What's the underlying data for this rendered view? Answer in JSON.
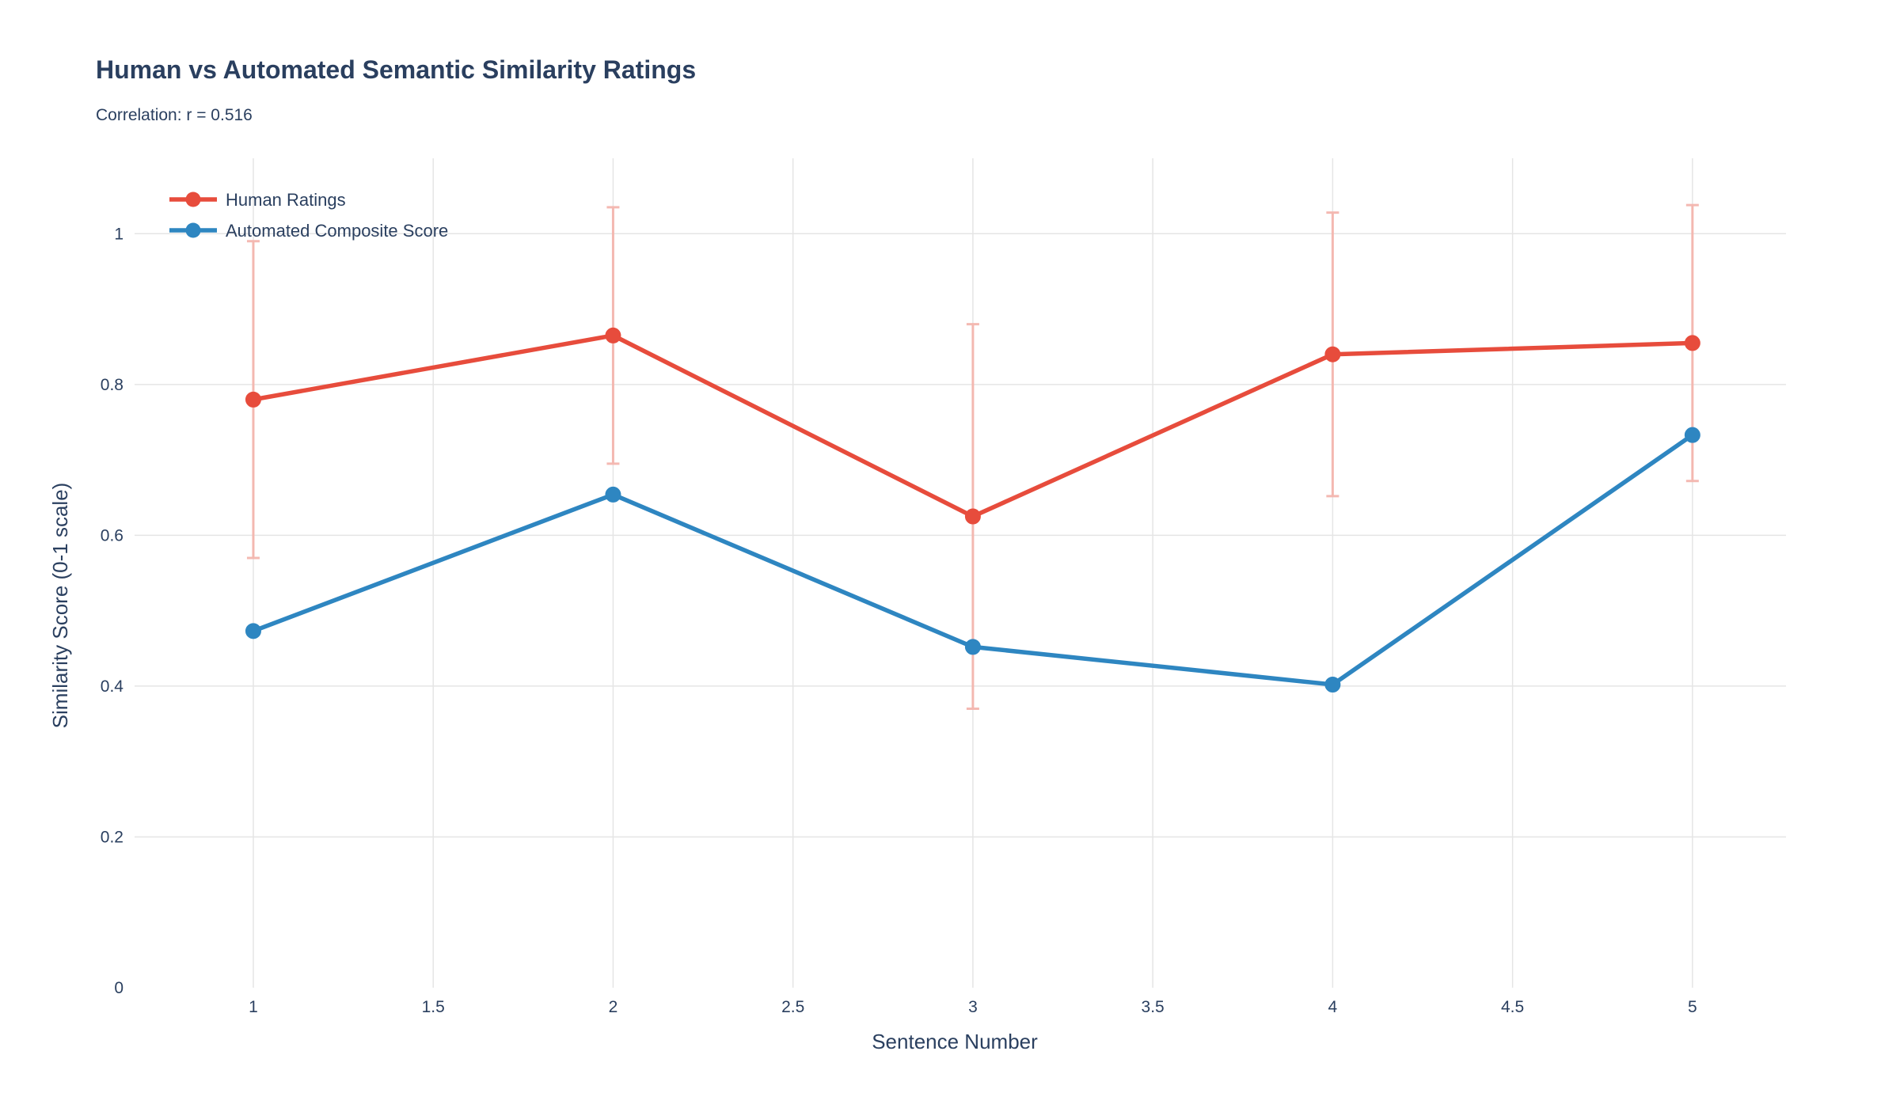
{
  "chart_data": {
    "type": "line",
    "title": "Human vs Automated Semantic Similarity Ratings",
    "subtitle": "Correlation: r = 0.516",
    "xlabel": "Sentence Number",
    "ylabel": "Similarity Score (0-1 scale)",
    "xlim": [
      0.67,
      5.26
    ],
    "ylim": [
      0,
      1.1
    ],
    "x_ticks": [
      1,
      1.5,
      2,
      2.5,
      3,
      3.5,
      4,
      4.5,
      5
    ],
    "x_tick_labels": [
      "1",
      "1.5",
      "2",
      "2.5",
      "3",
      "3.5",
      "4",
      "4.5",
      "5"
    ],
    "y_ticks": [
      0,
      0.2,
      0.4,
      0.6,
      0.8,
      1
    ],
    "y_tick_labels": [
      "0",
      "0.2",
      "0.4",
      "0.6",
      "0.8",
      "1"
    ],
    "grid": true,
    "legend_position": "top-left",
    "x": [
      1,
      2,
      3,
      4,
      5
    ],
    "series": [
      {
        "name": "Human Ratings",
        "color": "#e74c3c",
        "values": [
          0.78,
          0.865,
          0.625,
          0.84,
          0.855
        ],
        "error": [
          0.21,
          0.17,
          0.255,
          0.188,
          0.183
        ],
        "error_color": "#f4b6ae"
      },
      {
        "name": "Automated Composite Score",
        "color": "#2e86c1",
        "values": [
          0.473,
          0.654,
          0.452,
          0.402,
          0.733
        ]
      }
    ]
  }
}
